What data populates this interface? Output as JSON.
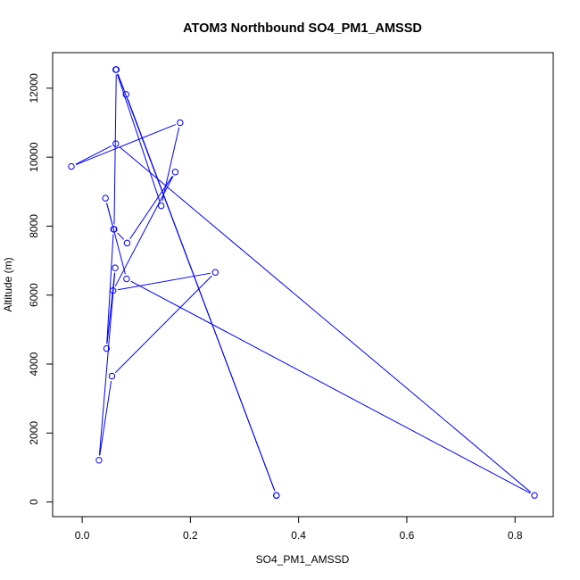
{
  "chart_data": {
    "type": "line",
    "title": "ATOM3 Northbound SO4_PM1_AMSSD",
    "xlabel": "SO4_PM1_AMSSD",
    "ylabel": "Altitude (m)",
    "xlim": [
      -0.02,
      0.836
    ],
    "ylim": [
      170,
      12540
    ],
    "x_ticks": [
      0.0,
      0.2,
      0.4,
      0.6,
      0.8
    ],
    "x_tick_labels": [
      "0.0",
      "0.2",
      "0.4",
      "0.6",
      "0.8"
    ],
    "y_ticks": [
      0,
      2000,
      4000,
      6000,
      8000,
      10000,
      12000
    ],
    "y_tick_labels": [
      "0",
      "2000",
      "4000",
      "6000",
      "8000",
      "10000",
      "12000"
    ],
    "color": "#0000ff",
    "marker": "open-circle",
    "grid": false,
    "series": [
      {
        "x": [
          0.359,
          0.081,
          0.062,
          0.146,
          0.181,
          -0.02,
          0.062,
          0.836,
          0.082,
          0.043,
          0.058,
          0.045,
          0.061,
          0.031,
          0.055,
          0.246,
          0.057,
          0.172,
          0.083,
          0.059,
          0.063,
          0.359
        ],
        "y": [
          190,
          11820,
          12540,
          8590,
          11000,
          9730,
          10390,
          190,
          6470,
          8810,
          7910,
          4450,
          6790,
          1210,
          3650,
          6660,
          6130,
          9570,
          7510,
          7910,
          12540,
          190
        ]
      }
    ]
  }
}
